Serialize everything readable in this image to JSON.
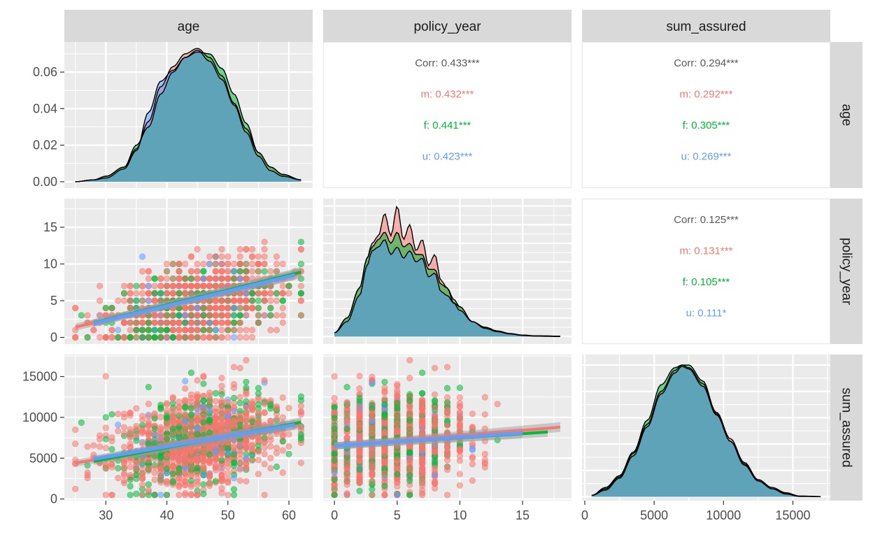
{
  "chart_data": {
    "type": "scatter",
    "title": "",
    "description": "ggpairs scatterplot matrix of age, policy_year and sum_assured grouped by gender (m, f, u)",
    "variables": [
      "age",
      "policy_year",
      "sum_assured"
    ],
    "groups": [
      {
        "name": "m",
        "color": "#F8766D"
      },
      {
        "name": "f",
        "color": "#00BA38"
      },
      {
        "name": "u",
        "color": "#619CFF"
      }
    ],
    "density_fill": "#5fa3b9",
    "axes": {
      "age": {
        "range": [
          23.2,
          63.9
        ],
        "ticks": [
          30,
          40,
          50,
          60
        ],
        "tick_labels": [
          "30",
          "40",
          "50",
          "60"
        ]
      },
      "policy_year": {
        "range": [
          -0.9,
          18.9
        ],
        "ticks": [
          0,
          5,
          10,
          15
        ],
        "tick_labels": [
          "0",
          "5",
          "10",
          "15"
        ]
      },
      "sum_assured": {
        "range": [
          -200,
          17700
        ],
        "ticks": [
          0,
          5000,
          10000,
          15000
        ],
        "tick_labels": [
          "0",
          "5000",
          "10000",
          "15000"
        ]
      },
      "age_density": {
        "range": [
          -0.0035,
          0.0765
        ],
        "ticks": [
          0.0,
          0.02,
          0.04,
          0.06
        ],
        "tick_labels": [
          "0.00",
          "0.02",
          "0.04",
          "0.06"
        ]
      }
    },
    "strips": {
      "top": [
        "age",
        "policy_year",
        "sum_assured"
      ],
      "right": [
        "age",
        "policy_year",
        "sum_assured"
      ]
    },
    "correlations": [
      {
        "row": "age",
        "col": "policy_year",
        "overall": "Corr: 0.433***",
        "by_group": [
          "m: 0.432***",
          "f: 0.441***",
          "u: 0.423***"
        ]
      },
      {
        "row": "age",
        "col": "sum_assured",
        "overall": "Corr: 0.294***",
        "by_group": [
          "m: 0.292***",
          "f: 0.305***",
          "u: 0.269***"
        ]
      },
      {
        "row": "policy_year",
        "col": "sum_assured",
        "overall": "Corr: 0.125***",
        "by_group": [
          "m: 0.131***",
          "f: 0.105***",
          "u: 0.111*"
        ]
      }
    ],
    "densities": {
      "age": {
        "x": [
          25,
          28,
          30,
          33,
          35,
          37,
          39,
          41,
          43,
          45,
          47,
          49,
          51,
          53,
          55,
          57,
          59,
          62
        ],
        "m": [
          0.0,
          0.001,
          0.003,
          0.008,
          0.018,
          0.033,
          0.052,
          0.063,
          0.07,
          0.073,
          0.068,
          0.058,
          0.043,
          0.029,
          0.016,
          0.008,
          0.004,
          0.001
        ],
        "f": [
          0.0,
          0.001,
          0.003,
          0.008,
          0.02,
          0.03,
          0.048,
          0.06,
          0.068,
          0.071,
          0.07,
          0.062,
          0.048,
          0.032,
          0.016,
          0.008,
          0.004,
          0.001
        ],
        "u": [
          0.0,
          0.001,
          0.002,
          0.007,
          0.017,
          0.038,
          0.055,
          0.061,
          0.068,
          0.072,
          0.066,
          0.056,
          0.042,
          0.027,
          0.014,
          0.006,
          0.003,
          0.001
        ]
      },
      "policy_year": {
        "x": [
          0,
          1,
          2,
          2.6,
          3,
          3.5,
          4,
          4.5,
          5,
          5.5,
          6,
          6.5,
          7,
          7.5,
          8,
          8.5,
          9,
          9.5,
          10,
          11,
          12,
          13,
          14,
          15,
          16,
          18
        ],
        "m": [
          0.01,
          0.05,
          0.13,
          0.21,
          0.25,
          0.27,
          0.33,
          0.27,
          0.35,
          0.26,
          0.3,
          0.23,
          0.26,
          0.19,
          0.22,
          0.15,
          0.13,
          0.09,
          0.08,
          0.04,
          0.025,
          0.015,
          0.008,
          0.004,
          0.002,
          0.001
        ],
        "f": [
          0.01,
          0.05,
          0.13,
          0.21,
          0.24,
          0.26,
          0.28,
          0.25,
          0.28,
          0.24,
          0.25,
          0.22,
          0.22,
          0.18,
          0.18,
          0.14,
          0.13,
          0.1,
          0.08,
          0.04,
          0.025,
          0.015,
          0.008,
          0.004,
          0.002,
          0.001
        ],
        "u": [
          0.01,
          0.04,
          0.11,
          0.19,
          0.23,
          0.24,
          0.26,
          0.22,
          0.24,
          0.21,
          0.23,
          0.2,
          0.21,
          0.16,
          0.17,
          0.12,
          0.11,
          0.09,
          0.07,
          0.04,
          0.022,
          0.013,
          0.007,
          0.003,
          0.001,
          0.0
        ]
      },
      "sum_assured": {
        "x": [
          500,
          1500,
          2500,
          3500,
          4500,
          5500,
          6500,
          7000,
          7500,
          8500,
          9500,
          10500,
          11500,
          12500,
          13500,
          14500,
          15500,
          17000
        ],
        "m": [
          0.01,
          0.06,
          0.15,
          0.33,
          0.55,
          0.8,
          0.96,
          1.0,
          0.98,
          0.86,
          0.64,
          0.44,
          0.26,
          0.13,
          0.07,
          0.03,
          0.005,
          0.001
        ],
        "f": [
          0.01,
          0.07,
          0.16,
          0.34,
          0.58,
          0.85,
          0.98,
          1.0,
          1.0,
          0.88,
          0.63,
          0.42,
          0.25,
          0.12,
          0.06,
          0.025,
          0.004,
          0.001
        ],
        "u": [
          0.01,
          0.05,
          0.14,
          0.31,
          0.53,
          0.78,
          0.94,
          0.99,
          0.97,
          0.84,
          0.62,
          0.42,
          0.24,
          0.12,
          0.06,
          0.02,
          0.002,
          0.0
        ]
      }
    },
    "regression_lines": {
      "age_vs_policy_year": [
        {
          "group": "m",
          "x": [
            25,
            62
          ],
          "y": [
            1.4,
            8.7
          ]
        },
        {
          "group": "f",
          "x": [
            28,
            62
          ],
          "y": [
            2.0,
            8.9
          ]
        },
        {
          "group": "u",
          "x": [
            28,
            61
          ],
          "y": [
            1.9,
            8.5
          ]
        }
      ],
      "age_vs_sum_assured": [
        {
          "group": "m",
          "x": [
            25,
            62
          ],
          "y": [
            4400,
            9200
          ]
        },
        {
          "group": "f",
          "x": [
            28,
            62
          ],
          "y": [
            4600,
            9400
          ]
        },
        {
          "group": "u",
          "x": [
            28,
            61
          ],
          "y": [
            4900,
            9100
          ]
        }
      ],
      "policy_year_vs_sum_assured": [
        {
          "group": "m",
          "x": [
            0,
            18
          ],
          "y": [
            6500,
            8800
          ]
        },
        {
          "group": "f",
          "x": [
            0,
            17
          ],
          "y": [
            6500,
            8200
          ]
        },
        {
          "group": "u",
          "x": [
            0,
            15
          ],
          "y": [
            6500,
            8100
          ]
        }
      ]
    },
    "scatter_summary": {
      "age_vs_policy_year": {
        "x_range": [
          25,
          62
        ],
        "y_range": [
          0,
          18
        ],
        "note": "integer policy_year grid, dense band"
      },
      "age_vs_sum_assured": {
        "x_range": [
          25,
          62
        ],
        "y_range": [
          500,
          17000
        ]
      },
      "policy_year_vs_sum_assured": {
        "x_range": [
          0,
          18
        ],
        "y_range": [
          500,
          17000
        ]
      }
    },
    "grid": true,
    "legend": "none"
  }
}
